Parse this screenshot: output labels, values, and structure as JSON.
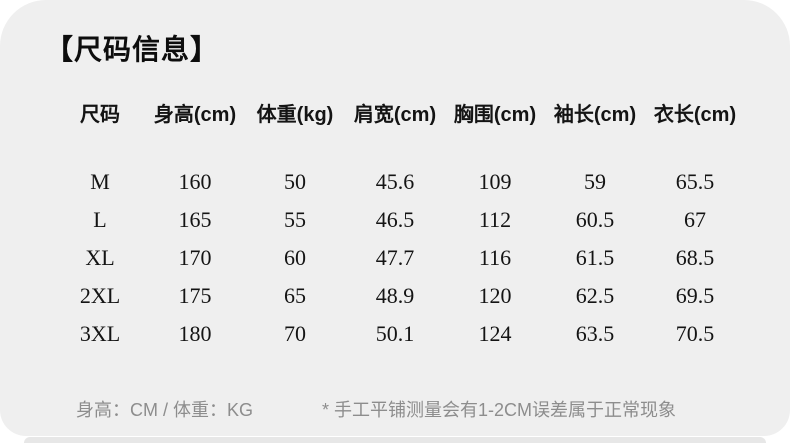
{
  "colors": {
    "card_bg": "#efefef",
    "next_card_bg": "#e7e7e7",
    "title_color": "#0d0d0d",
    "table_text": "#141414",
    "note_color": "#8d8d8d",
    "page_bg": "#ffffff"
  },
  "title": "【尺码信息】",
  "size_table": {
    "headers": [
      "尺码",
      "身高(cm)",
      "体重(kg)",
      "肩宽(cm)",
      "胸围(cm)",
      "袖长(cm)",
      "衣长(cm)"
    ],
    "rows": [
      [
        "M",
        "160",
        "50",
        "45.6",
        "109",
        "59",
        "65.5"
      ],
      [
        "L",
        "165",
        "55",
        "46.5",
        "112",
        "60.5",
        "67"
      ],
      [
        "XL",
        "170",
        "60",
        "47.7",
        "116",
        "61.5",
        "68.5"
      ],
      [
        "2XL",
        "175",
        "65",
        "48.9",
        "120",
        "62.5",
        "69.5"
      ],
      [
        "3XL",
        "180",
        "70",
        "50.1",
        "124",
        "63.5",
        "70.5"
      ]
    ]
  },
  "footnote": {
    "units": "身高：CM / 体重：KG",
    "note": "* 手工平铺测量会有1-2CM误差属于正常现象"
  }
}
